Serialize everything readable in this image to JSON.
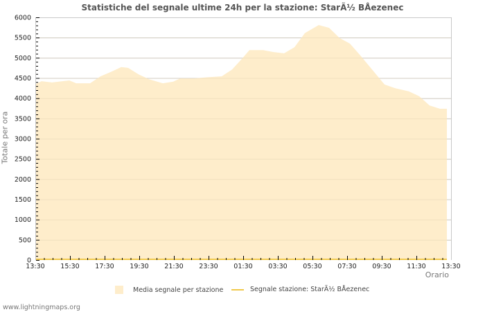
{
  "title": "Statistiche del segnale ultime 24h per la stazione: StarÃ½ BÅezenec",
  "colors": {
    "area_fill": "#feedcb",
    "line": "#f0c84a",
    "grid": "#cccccc",
    "grid_inside_area": "#d8c9a8",
    "axis": "#c8c8c8"
  },
  "chart_data": {
    "type": "area",
    "title": "Statistiche del segnale ultime 24h per la stazione: StarÃ½ BÅezenec",
    "xlabel": "Orario",
    "ylabel": "Totale per ora",
    "ylim": [
      0,
      6000
    ],
    "yticks": [
      0,
      500,
      1000,
      1500,
      2000,
      2500,
      3000,
      3500,
      4000,
      4500,
      5000,
      5500,
      6000
    ],
    "xticks": [
      "13:30",
      "15:30",
      "17:30",
      "19:30",
      "21:30",
      "23:30",
      "01:30",
      "03:30",
      "05:30",
      "07:30",
      "09:30",
      "11:30",
      "13:30"
    ],
    "x_hours_from_start": [
      0,
      0.36,
      0.96,
      1.96,
      2.36,
      3.16,
      3.76,
      4.36,
      4.96,
      5.36,
      5.96,
      6.56,
      7.36,
      7.96,
      8.36,
      9.16,
      9.96,
      10.76,
      11.36,
      11.96,
      12.36,
      13.16,
      13.76,
      14.36,
      14.96,
      15.56,
      16.36,
      16.96,
      17.56,
      18.16,
      18.76,
      19.36,
      20.16,
      20.76,
      21.56,
      22.16,
      22.76,
      23.36,
      23.76
    ],
    "series": [
      {
        "name": "Media segnale per stazione",
        "type": "area",
        "values": [
          4350,
          4420,
          4390,
          4440,
          4370,
          4370,
          4540,
          4650,
          4770,
          4750,
          4590,
          4470,
          4370,
          4410,
          4490,
          4490,
          4520,
          4540,
          4710,
          4990,
          5190,
          5190,
          5140,
          5110,
          5260,
          5610,
          5810,
          5740,
          5490,
          5350,
          5060,
          4750,
          4340,
          4250,
          4170,
          4050,
          3820,
          3740,
          3740
        ]
      },
      {
        "name": "Segnale stazione: StarÃ½ BÅezenec",
        "type": "line",
        "values": [
          0,
          0,
          0,
          0,
          0,
          0,
          0,
          0,
          0,
          0,
          0,
          0,
          0,
          0,
          0,
          0,
          0,
          0,
          0,
          0,
          0,
          0,
          0,
          0,
          0,
          0,
          0,
          0,
          0,
          0,
          0,
          0,
          0,
          0,
          0,
          0,
          0,
          0,
          0
        ]
      }
    ],
    "grid": true,
    "legend_position": "bottom"
  },
  "legend": {
    "items": [
      {
        "label": "Media segnale per stazione",
        "kind": "area"
      },
      {
        "label": "Segnale stazione: StarÃ½ BÅezenec",
        "kind": "line"
      }
    ]
  },
  "footer": "www.lightningmaps.org"
}
